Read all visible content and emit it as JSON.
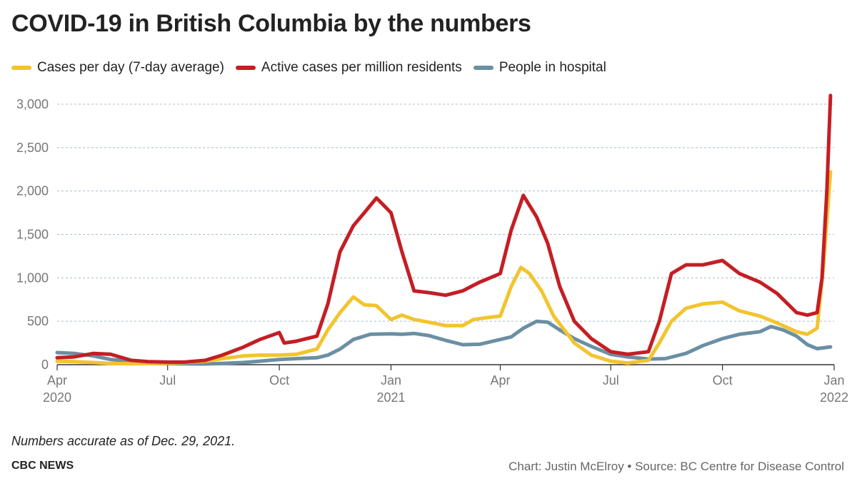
{
  "chart_data": {
    "type": "line",
    "title": "COVID-19 in British Columbia by the numbers",
    "ylim": [
      0,
      3000
    ],
    "yticks": [
      0,
      500,
      1000,
      1500,
      2000,
      2500,
      3000
    ],
    "ytick_labels": [
      "0",
      "500",
      "1,000",
      "1,500",
      "2,000",
      "2,500",
      "3,000"
    ],
    "xlim": [
      "2020-04-01",
      "2021-12-29"
    ],
    "xticks": [
      {
        "date": "2020-04-01",
        "label": "Apr",
        "sublabel": "2020"
      },
      {
        "date": "2020-07-01",
        "label": "Jul",
        "sublabel": ""
      },
      {
        "date": "2020-10-01",
        "label": "Oct",
        "sublabel": ""
      },
      {
        "date": "2021-01-01",
        "label": "Jan",
        "sublabel": "2021"
      },
      {
        "date": "2021-04-01",
        "label": "Apr",
        "sublabel": ""
      },
      {
        "date": "2021-07-01",
        "label": "Jul",
        "sublabel": ""
      },
      {
        "date": "2021-10-01",
        "label": "Oct",
        "sublabel": ""
      },
      {
        "date": "2022-01-01",
        "label": "Jan",
        "sublabel": "2022"
      }
    ],
    "grid": "horizontal dashed",
    "legend_position": "top-left",
    "series": [
      {
        "name": "People in hospital",
        "color": "#6b8fa3",
        "points": [
          [
            "2020-04-01",
            140
          ],
          [
            "2020-04-15",
            130
          ],
          [
            "2020-05-01",
            100
          ],
          [
            "2020-05-15",
            60
          ],
          [
            "2020-06-01",
            40
          ],
          [
            "2020-06-15",
            25
          ],
          [
            "2020-07-01",
            15
          ],
          [
            "2020-07-15",
            10
          ],
          [
            "2020-08-01",
            8
          ],
          [
            "2020-08-15",
            15
          ],
          [
            "2020-09-01",
            25
          ],
          [
            "2020-09-15",
            40
          ],
          [
            "2020-10-01",
            60
          ],
          [
            "2020-10-15",
            70
          ],
          [
            "2020-11-01",
            80
          ],
          [
            "2020-11-10",
            110
          ],
          [
            "2020-11-20",
            180
          ],
          [
            "2020-12-01",
            290
          ],
          [
            "2020-12-15",
            350
          ],
          [
            "2021-01-01",
            355
          ],
          [
            "2021-01-10",
            350
          ],
          [
            "2021-01-20",
            360
          ],
          [
            "2021-02-01",
            335
          ],
          [
            "2021-02-15",
            280
          ],
          [
            "2021-03-01",
            230
          ],
          [
            "2021-03-15",
            235
          ],
          [
            "2021-04-01",
            290
          ],
          [
            "2021-04-10",
            320
          ],
          [
            "2021-04-20",
            420
          ],
          [
            "2021-05-01",
            500
          ],
          [
            "2021-05-10",
            490
          ],
          [
            "2021-05-20",
            400
          ],
          [
            "2021-06-01",
            300
          ],
          [
            "2021-06-15",
            210
          ],
          [
            "2021-07-01",
            120
          ],
          [
            "2021-07-15",
            90
          ],
          [
            "2021-08-01",
            65
          ],
          [
            "2021-08-15",
            70
          ],
          [
            "2021-09-01",
            130
          ],
          [
            "2021-09-15",
            220
          ],
          [
            "2021-10-01",
            300
          ],
          [
            "2021-10-15",
            350
          ],
          [
            "2021-11-01",
            380
          ],
          [
            "2021-11-10",
            440
          ],
          [
            "2021-11-20",
            400
          ],
          [
            "2021-12-01",
            330
          ],
          [
            "2021-12-10",
            230
          ],
          [
            "2021-12-18",
            185
          ],
          [
            "2021-12-29",
            205
          ]
        ]
      },
      {
        "name": "Cases per day (7-day average)",
        "color": "#f2c42e",
        "points": [
          [
            "2020-04-01",
            40
          ],
          [
            "2020-04-15",
            35
          ],
          [
            "2020-05-01",
            25
          ],
          [
            "2020-05-15",
            15
          ],
          [
            "2020-06-01",
            10
          ],
          [
            "2020-06-15",
            12
          ],
          [
            "2020-07-01",
            20
          ],
          [
            "2020-07-15",
            25
          ],
          [
            "2020-08-01",
            40
          ],
          [
            "2020-08-15",
            70
          ],
          [
            "2020-09-01",
            100
          ],
          [
            "2020-09-15",
            110
          ],
          [
            "2020-10-01",
            110
          ],
          [
            "2020-10-15",
            120
          ],
          [
            "2020-11-01",
            180
          ],
          [
            "2020-11-10",
            400
          ],
          [
            "2020-11-20",
            600
          ],
          [
            "2020-12-01",
            780
          ],
          [
            "2020-12-10",
            690
          ],
          [
            "2020-12-20",
            680
          ],
          [
            "2021-01-01",
            520
          ],
          [
            "2021-01-10",
            570
          ],
          [
            "2021-01-20",
            520
          ],
          [
            "2021-02-01",
            490
          ],
          [
            "2021-02-15",
            450
          ],
          [
            "2021-03-01",
            450
          ],
          [
            "2021-03-10",
            520
          ],
          [
            "2021-03-20",
            540
          ],
          [
            "2021-04-01",
            560
          ],
          [
            "2021-04-10",
            900
          ],
          [
            "2021-04-18",
            1120
          ],
          [
            "2021-04-25",
            1050
          ],
          [
            "2021-05-05",
            850
          ],
          [
            "2021-05-15",
            560
          ],
          [
            "2021-06-01",
            250
          ],
          [
            "2021-06-15",
            110
          ],
          [
            "2021-07-01",
            40
          ],
          [
            "2021-07-15",
            20
          ],
          [
            "2021-08-01",
            50
          ],
          [
            "2021-08-10",
            250
          ],
          [
            "2021-08-20",
            500
          ],
          [
            "2021-09-01",
            650
          ],
          [
            "2021-09-15",
            700
          ],
          [
            "2021-10-01",
            720
          ],
          [
            "2021-10-15",
            620
          ],
          [
            "2021-11-01",
            560
          ],
          [
            "2021-11-15",
            480
          ],
          [
            "2021-12-01",
            380
          ],
          [
            "2021-12-10",
            350
          ],
          [
            "2021-12-18",
            420
          ],
          [
            "2021-12-23",
            1100
          ],
          [
            "2021-12-29",
            2220
          ]
        ]
      },
      {
        "name": "Active cases per million residents",
        "color": "#c41e25",
        "points": [
          [
            "2020-04-01",
            80
          ],
          [
            "2020-04-15",
            90
          ],
          [
            "2020-05-01",
            130
          ],
          [
            "2020-05-15",
            120
          ],
          [
            "2020-06-01",
            50
          ],
          [
            "2020-06-15",
            35
          ],
          [
            "2020-07-01",
            30
          ],
          [
            "2020-07-15",
            30
          ],
          [
            "2020-08-01",
            50
          ],
          [
            "2020-08-15",
            110
          ],
          [
            "2020-09-01",
            200
          ],
          [
            "2020-09-15",
            290
          ],
          [
            "2020-10-01",
            370
          ],
          [
            "2020-10-05",
            250
          ],
          [
            "2020-10-15",
            270
          ],
          [
            "2020-11-01",
            330
          ],
          [
            "2020-11-10",
            700
          ],
          [
            "2020-11-20",
            1300
          ],
          [
            "2020-12-01",
            1600
          ],
          [
            "2020-12-10",
            1750
          ],
          [
            "2020-12-20",
            1920
          ],
          [
            "2021-01-01",
            1750
          ],
          [
            "2021-01-10",
            1300
          ],
          [
            "2021-01-20",
            850
          ],
          [
            "2021-02-01",
            830
          ],
          [
            "2021-02-15",
            800
          ],
          [
            "2021-03-01",
            850
          ],
          [
            "2021-03-15",
            950
          ],
          [
            "2021-04-01",
            1050
          ],
          [
            "2021-04-10",
            1550
          ],
          [
            "2021-04-20",
            1950
          ],
          [
            "2021-05-01",
            1700
          ],
          [
            "2021-05-10",
            1400
          ],
          [
            "2021-05-20",
            900
          ],
          [
            "2021-06-01",
            500
          ],
          [
            "2021-06-15",
            300
          ],
          [
            "2021-07-01",
            150
          ],
          [
            "2021-07-15",
            120
          ],
          [
            "2021-08-01",
            150
          ],
          [
            "2021-08-10",
            500
          ],
          [
            "2021-08-20",
            1050
          ],
          [
            "2021-09-01",
            1150
          ],
          [
            "2021-09-15",
            1150
          ],
          [
            "2021-10-01",
            1200
          ],
          [
            "2021-10-15",
            1050
          ],
          [
            "2021-11-01",
            950
          ],
          [
            "2021-11-15",
            820
          ],
          [
            "2021-12-01",
            600
          ],
          [
            "2021-12-10",
            570
          ],
          [
            "2021-12-18",
            600
          ],
          [
            "2021-12-22",
            1000
          ],
          [
            "2021-12-26",
            2000
          ],
          [
            "2021-12-29",
            3100
          ]
        ]
      }
    ]
  },
  "legend": [
    {
      "label": "Cases per day (7-day average)",
      "color": "#f2c42e"
    },
    {
      "label": "Active cases per million residents",
      "color": "#c41e25"
    },
    {
      "label": "People in hospital",
      "color": "#6b8fa3"
    }
  ],
  "note": "Numbers accurate as of Dec. 29, 2021.",
  "brand": "CBC NEWS",
  "credit": "Chart: Justin McElroy • Source: BC Centre for Disease Control"
}
